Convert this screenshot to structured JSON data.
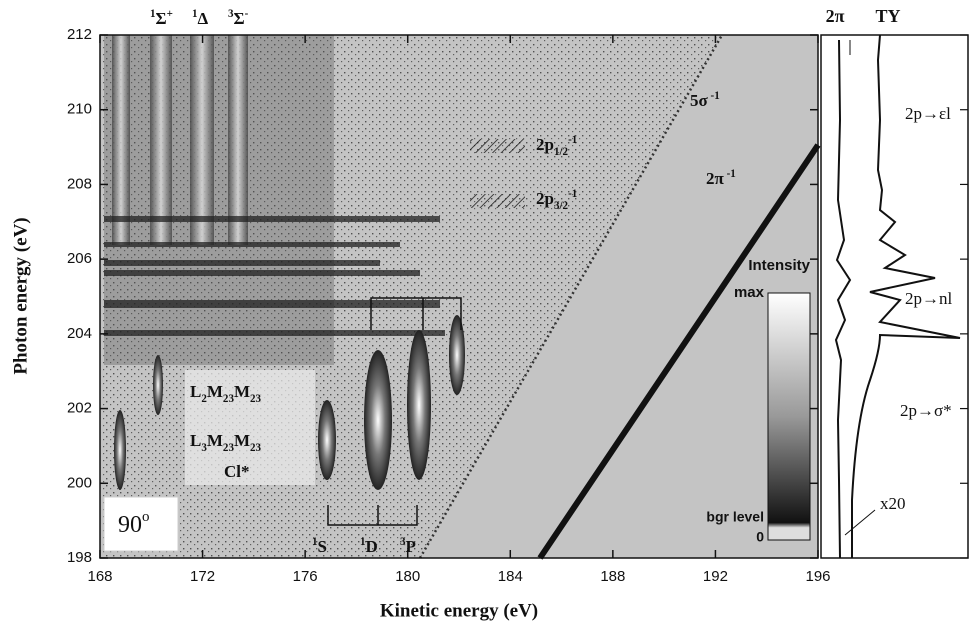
{
  "chart_data": {
    "type": "map",
    "xlabel": "Kinetic energy (eV)",
    "ylabel": "Photon energy (eV)",
    "xlim": [
      168,
      196
    ],
    "ylim": [
      198,
      212
    ],
    "xticks": [
      168,
      172,
      176,
      180,
      184,
      188,
      192,
      196
    ],
    "yticks": [
      198,
      200,
      202,
      204,
      206,
      208,
      210,
      212
    ],
    "annotations": [
      [
        "1",
        "Σ",
        "+"
      ],
      [
        "1",
        "Δ"
      ],
      [
        "3",
        "Σ",
        "-"
      ],
      [
        "5σ",
        " -1"
      ],
      [
        "2π",
        " -1"
      ],
      [
        "2p",
        "1/2",
        "-1"
      ],
      [
        "2p",
        "3/2",
        "-1"
      ],
      [
        "L",
        "2",
        "M",
        "23",
        "M",
        "23"
      ],
      [
        "L",
        "3",
        "M",
        "23",
        "M",
        "23"
      ],
      [
        "Cl*"
      ],
      [
        "1",
        "S"
      ],
      [
        "1",
        "D"
      ],
      [
        "3",
        "P"
      ]
    ],
    "angle": [
      "90",
      "o"
    ],
    "colorbar": {
      "title": "Intensity",
      "max": "max",
      "bgr": "bgr level",
      "zero": "0"
    },
    "side_panel": {
      "labels": [
        "2π",
        "TY"
      ],
      "annotations": [
        "2p→εl",
        "2p→nl",
        "2p→σ*",
        "x20"
      ]
    }
  }
}
